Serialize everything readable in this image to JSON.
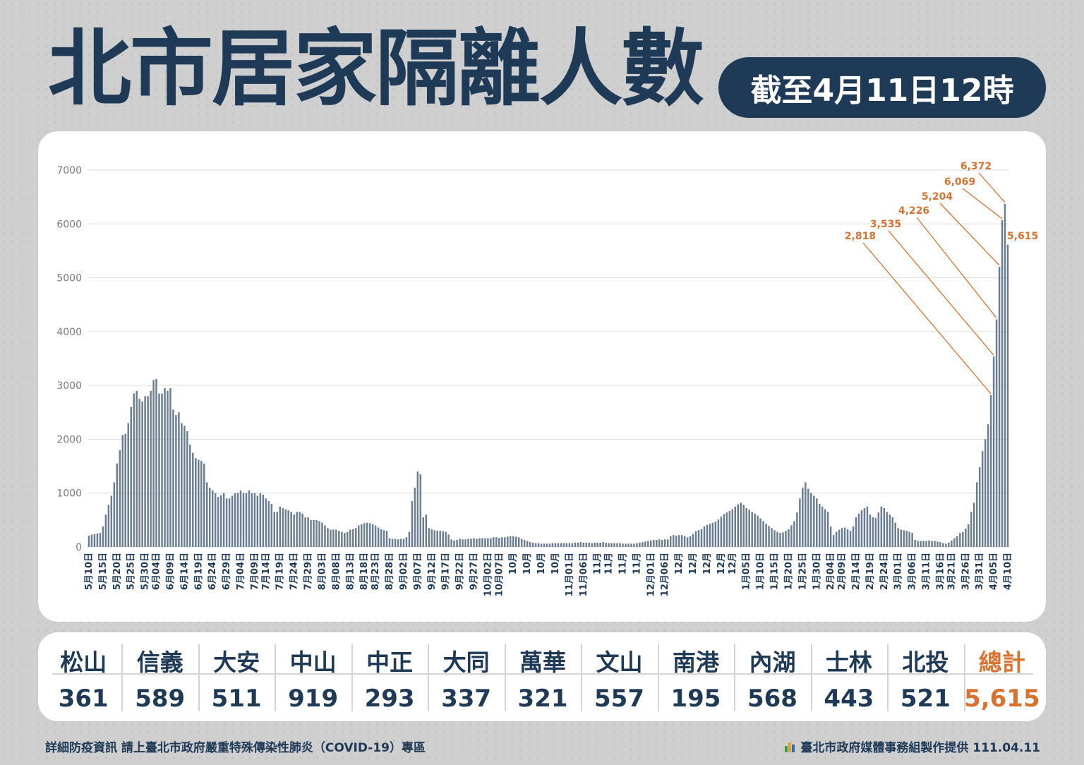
{
  "header": {
    "title": "北市居家隔離人數",
    "date_label": "截至4月11日12時"
  },
  "chart_data": {
    "type": "bar",
    "ylim": [
      0,
      7000
    ],
    "yticks": [
      0,
      1000,
      2000,
      3000,
      4000,
      5000,
      6000,
      7000
    ],
    "x_tick_labels": [
      "5月10日",
      "5月15日",
      "5月20日",
      "5月25日",
      "5月30日",
      "6月04日",
      "6月09日",
      "6月14日",
      "6月19日",
      "6月24日",
      "6月29日",
      "7月04日",
      "7月09日",
      "7月14日",
      "7月19日",
      "7月24日",
      "7月29日",
      "8月03日",
      "8月08日",
      "8月13日",
      "8月18日",
      "8月23日",
      "8月28日",
      "9月02日",
      "9月07日",
      "9月12日",
      "9月17日",
      "9月22日",
      "9月27日",
      "10月02日",
      "10月07日",
      "10月",
      "10月",
      "10月",
      "10月",
      "11月01日",
      "11月06日",
      "11月",
      "11月",
      "11月",
      "11月",
      "12月01日",
      "12月06日",
      "12月",
      "12月",
      "12月",
      "12月",
      "12月",
      "1月05日",
      "1月10日",
      "1月15日",
      "1月20日",
      "1月25日",
      "1月30日",
      "2月04日",
      "2月09日",
      "2月14日",
      "2月19日",
      "2月24日",
      "3月01日",
      "3月06日",
      "3月11日",
      "3月16日",
      "3月21日",
      "3月26日",
      "3月31日",
      "4月05日",
      "4月10日"
    ],
    "annotations": [
      "2,818",
      "3,535",
      "4,226",
      "5,204",
      "6,069",
      "6,372",
      "5,615"
    ],
    "values": [
      210,
      230,
      240,
      250,
      260,
      380,
      600,
      780,
      950,
      1200,
      1550,
      1800,
      2080,
      2100,
      2300,
      2600,
      2850,
      2900,
      2750,
      2700,
      2800,
      2800,
      2900,
      3100,
      3120,
      2850,
      2850,
      2950,
      2900,
      2950,
      2550,
      2450,
      2500,
      2300,
      2250,
      2150,
      1900,
      1750,
      1650,
      1620,
      1600,
      1550,
      1200,
      1100,
      1050,
      1000,
      930,
      960,
      1000,
      900,
      900,
      950,
      1000,
      1000,
      1050,
      1000,
      1000,
      1050,
      1000,
      1000,
      950,
      1000,
      970,
      900,
      850,
      800,
      650,
      650,
      750,
      720,
      700,
      680,
      650,
      600,
      650,
      650,
      620,
      550,
      550,
      500,
      500,
      500,
      480,
      450,
      400,
      350,
      320,
      320,
      320,
      300,
      280,
      260,
      280,
      320,
      330,
      350,
      400,
      420,
      440,
      450,
      440,
      420,
      400,
      360,
      330,
      310,
      300,
      160,
      150,
      150,
      140,
      150,
      150,
      180,
      280,
      850,
      1100,
      1400,
      1350,
      550,
      600,
      350,
      330,
      310,
      300,
      300,
      290,
      280,
      230,
      140,
      120,
      130,
      150,
      140,
      140,
      150,
      150,
      160,
      150,
      160,
      160,
      160,
      160,
      160,
      180,
      180,
      170,
      180,
      180,
      190,
      200,
      200,
      190,
      180,
      150,
      130,
      110,
      90,
      80,
      70,
      70,
      60,
      60,
      60,
      60,
      70,
      70,
      70,
      70,
      70,
      70,
      70,
      70,
      80,
      80,
      90,
      80,
      80,
      80,
      70,
      80,
      80,
      80,
      90,
      80,
      70,
      70,
      70,
      70,
      70,
      60,
      60,
      60,
      60,
      60,
      70,
      80,
      90,
      100,
      110,
      120,
      130,
      130,
      140,
      130,
      140,
      140,
      200,
      220,
      210,
      220,
      220,
      200,
      180,
      200,
      240,
      290,
      310,
      330,
      380,
      410,
      430,
      450,
      470,
      510,
      560,
      610,
      640,
      670,
      700,
      750,
      790,
      820,
      780,
      720,
      690,
      650,
      620,
      580,
      530,
      480,
      430,
      390,
      350,
      310,
      280,
      260,
      270,
      300,
      330,
      400,
      480,
      640,
      900,
      1100,
      1200,
      1080,
      1000,
      950,
      900,
      800,
      750,
      700,
      650,
      380,
      220,
      280,
      320,
      350,
      360,
      330,
      300,
      380,
      550,
      620,
      680,
      720,
      750,
      600,
      550,
      540,
      640,
      750,
      720,
      650,
      600,
      550,
      450,
      350,
      320,
      310,
      300,
      280,
      260,
      130,
      110,
      110,
      110,
      110,
      120,
      110,
      110,
      100,
      90,
      70,
      60,
      80,
      120,
      160,
      200,
      260,
      280,
      340,
      420,
      650,
      820,
      1200,
      1480,
      1780,
      2000,
      2280,
      2818,
      3535,
      4226,
      5204,
      6069,
      6372,
      5615
    ]
  },
  "districts": {
    "names": [
      "松山",
      "信義",
      "大安",
      "中山",
      "中正",
      "大同",
      "萬華",
      "文山",
      "南港",
      "內湖",
      "士林",
      "北投",
      "總計"
    ],
    "values": [
      "361",
      "589",
      "511",
      "919",
      "293",
      "337",
      "321",
      "557",
      "195",
      "568",
      "443",
      "521",
      "5,615"
    ]
  },
  "footer": {
    "left": "詳細防疫資訊 請上臺北市政府嚴重特殊傳染性肺炎（COVID-19）專區",
    "right": "臺北市政府媒體事務組製作提供 111.04.11"
  },
  "colors": {
    "navy": "#1f3a57",
    "bar": "#6b7d91",
    "accent": "#d9722e",
    "grid": "#dedede"
  }
}
